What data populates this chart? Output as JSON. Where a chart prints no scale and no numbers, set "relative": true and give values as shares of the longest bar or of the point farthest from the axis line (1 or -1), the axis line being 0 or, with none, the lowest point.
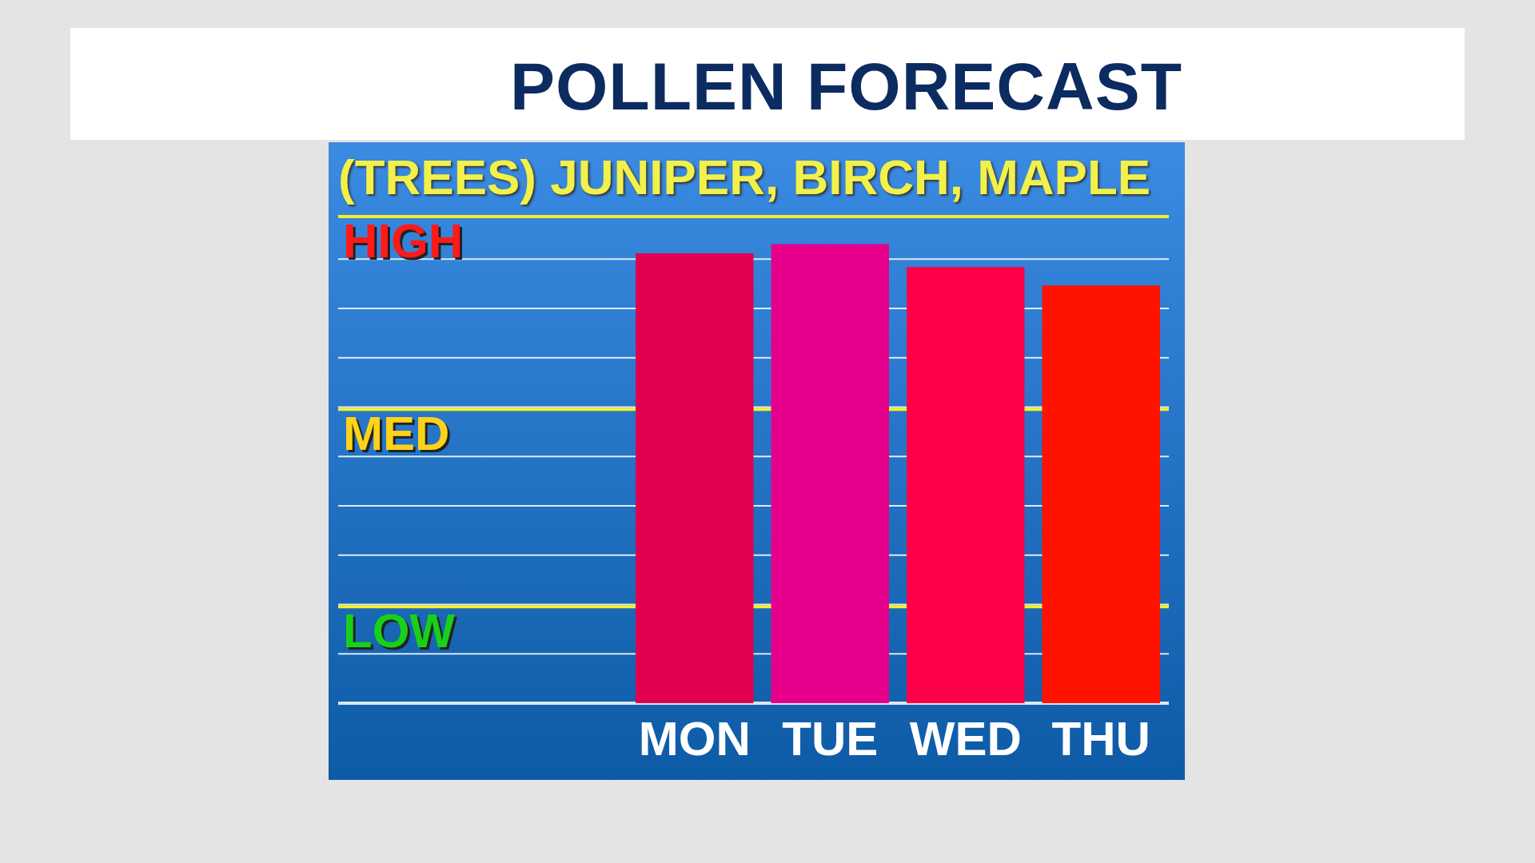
{
  "chart_data": {
    "type": "bar",
    "title": "POLLEN FORECAST",
    "subtitle": "(TREES) JUNIPER, BIRCH, MAPLE",
    "categories": [
      "MON",
      "TUE",
      "WED",
      "THU"
    ],
    "values": [
      0.98,
      1,
      0.95,
      0.91
    ],
    "colors": [
      "#e0004f",
      "#e6008c",
      "#ff0048",
      "#ff1200"
    ],
    "relative": true,
    "ref_lines": [
      {
        "axis": "y",
        "value": 0.21,
        "label": "LOW",
        "color": "#f5ef2a"
      },
      {
        "axis": "y",
        "value": 0.64,
        "label": "MED",
        "color": "#f5ef2a"
      },
      {
        "axis": "y",
        "value": 1.06,
        "label": "HIGH",
        "color": "#f5ef2a"
      }
    ],
    "grid": "y",
    "legend": false
  }
}
